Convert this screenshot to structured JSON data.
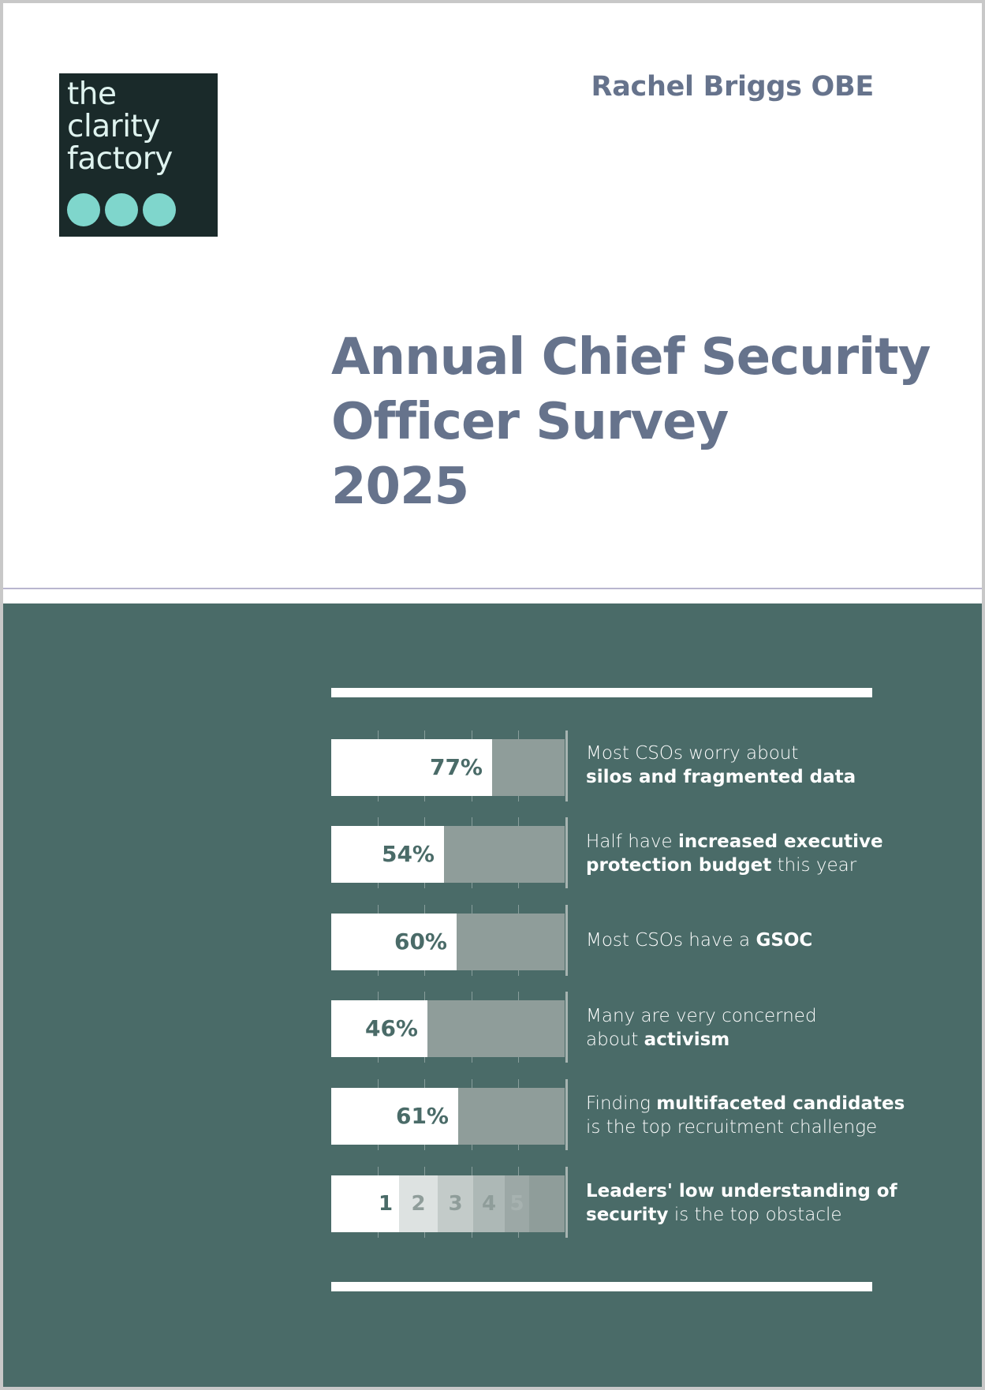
{
  "logo": {
    "lines": [
      "the",
      "clarity",
      "factory"
    ]
  },
  "author": "Rachel Briggs OBE",
  "title": {
    "line1": "Annual Chief Security",
    "line2": "Officer Survey",
    "year": "2025"
  },
  "stats": [
    {
      "value": 77,
      "label": "77%",
      "text_plain_1": "Most CSOs worry about",
      "text_bold_1": "silos and fragmented data"
    },
    {
      "value": 54,
      "label": "54%",
      "text_plain_1": "Half have ",
      "text_bold_1": "increased executive",
      "text_bold_2": "protection budget",
      "text_plain_2": " this year"
    },
    {
      "value": 60,
      "label": "60%",
      "text_plain_1": "Most CSOs have a ",
      "text_bold_1": "GSOC"
    },
    {
      "value": 46,
      "label": "46%",
      "text_plain_1": "Many are very concerned",
      "text_plain_2": "about ",
      "text_bold_1": "activism"
    },
    {
      "value": 61,
      "label": "61%",
      "text_plain_1": "Finding ",
      "text_bold_1": "multifaceted candidates",
      "text_plain_2": "is the top recruitment challenge"
    }
  ],
  "ranking": {
    "ranks": [
      "1",
      "2",
      "3",
      "4",
      "5"
    ],
    "text_bold_1": "Leaders' low understanding of",
    "text_bold_2": "security",
    "text_plain_1": " is the top obstacle"
  },
  "colors": {
    "panel": "#4a6b68",
    "title": "#66738c",
    "logo_bg": "#1a2a2a",
    "logo_dots": "#7fd6cc",
    "track": "#8f9d9a"
  }
}
